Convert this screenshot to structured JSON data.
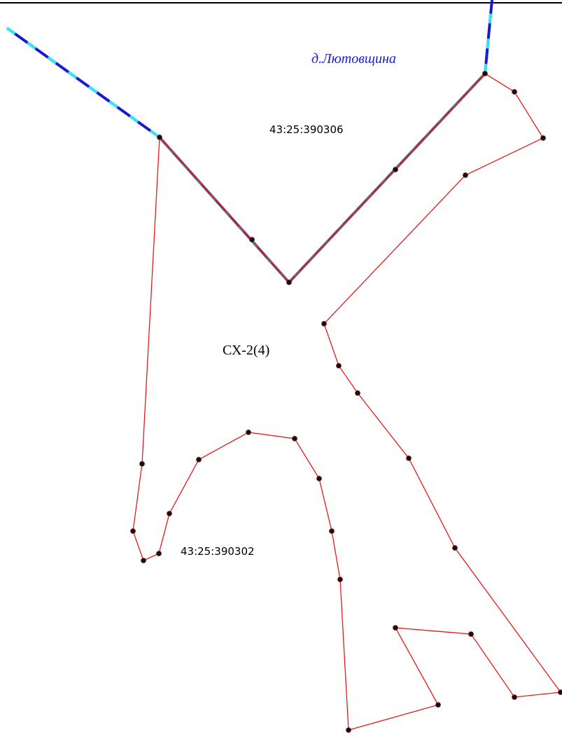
{
  "map": {
    "settlement_label": "д.Лютовщина",
    "parcel_labels": [
      "43:25:390306",
      "СХ-2(4)",
      "43:25:390302"
    ]
  }
}
